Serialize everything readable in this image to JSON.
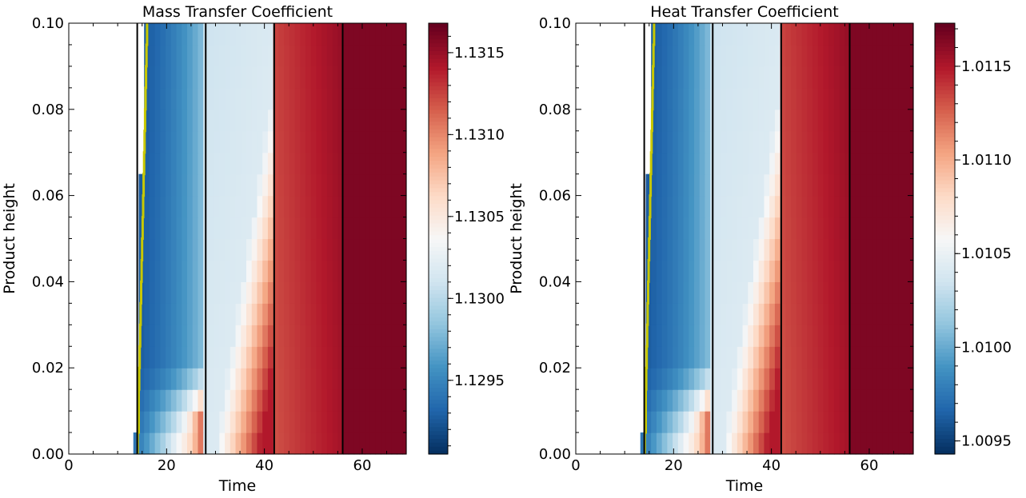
{
  "chart_data": [
    {
      "type": "heatmap",
      "title": "Mass Transfer Coefficient",
      "xlabel": "Time",
      "ylabel": "Product height",
      "xlim": [
        0,
        69
      ],
      "ylim": [
        0,
        0.1
      ],
      "xticks": [
        0,
        20,
        40,
        60
      ],
      "xtick_labels": [
        "0",
        "20",
        "40",
        "60"
      ],
      "yticks": [
        0,
        0.02,
        0.04,
        0.06,
        0.08,
        0.1
      ],
      "ytick_labels": [
        "0.00",
        "0.02",
        "0.04",
        "0.06",
        "0.08",
        "0.10"
      ],
      "colormap": "RdBu_r",
      "colorbar_range": [
        1.12905,
        1.13168
      ],
      "colorbar_ticks": [
        1.1295,
        1.13,
        1.1305,
        1.131,
        1.1315
      ],
      "colorbar_tick_labels": [
        "1.1295",
        "1.1300",
        "1.1305",
        "1.1310",
        "1.1315"
      ],
      "vertical_lines_x": [
        14,
        28,
        42,
        56
      ],
      "rows": 20,
      "time_step": 1.1,
      "front_times": [
        13.6,
        13.8,
        13.8,
        13.9,
        14,
        14.1,
        14.2,
        14.3,
        14.4,
        14.5,
        14.6,
        14.7,
        14.8,
        14.9,
        15,
        15.1,
        15.2,
        15.3,
        15.4,
        15.5
      ],
      "front_line_color": "#c8c800",
      "grid": false,
      "legend": "none"
    },
    {
      "type": "heatmap",
      "title": "Heat Transfer Coefficient",
      "xlabel": "Time",
      "ylabel": "Product height",
      "xlim": [
        0,
        69
      ],
      "ylim": [
        0,
        0.1
      ],
      "xticks": [
        0,
        20,
        40,
        60
      ],
      "xtick_labels": [
        "0",
        "20",
        "40",
        "60"
      ],
      "yticks": [
        0,
        0.02,
        0.04,
        0.06,
        0.08,
        0.1
      ],
      "ytick_labels": [
        "0.00",
        "0.02",
        "0.04",
        "0.06",
        "0.08",
        "0.10"
      ],
      "colormap": "RdBu_r",
      "colorbar_range": [
        1.00943,
        1.01173
      ],
      "colorbar_ticks": [
        1.0095,
        1.01,
        1.0105,
        1.011,
        1.0115
      ],
      "colorbar_tick_labels": [
        "1.0095",
        "1.0100",
        "1.0105",
        "1.0110",
        "1.0115"
      ],
      "vertical_lines_x": [
        14,
        28,
        42,
        56
      ],
      "rows": 20,
      "time_step": 1.1,
      "front_times": [
        13.6,
        13.8,
        13.8,
        13.9,
        14,
        14.1,
        14.2,
        14.3,
        14.4,
        14.5,
        14.6,
        14.7,
        14.8,
        14.9,
        15,
        15.1,
        15.2,
        15.3,
        15.4,
        15.5
      ],
      "front_line_color": "#c8c800",
      "grid": false,
      "legend": "none"
    }
  ]
}
